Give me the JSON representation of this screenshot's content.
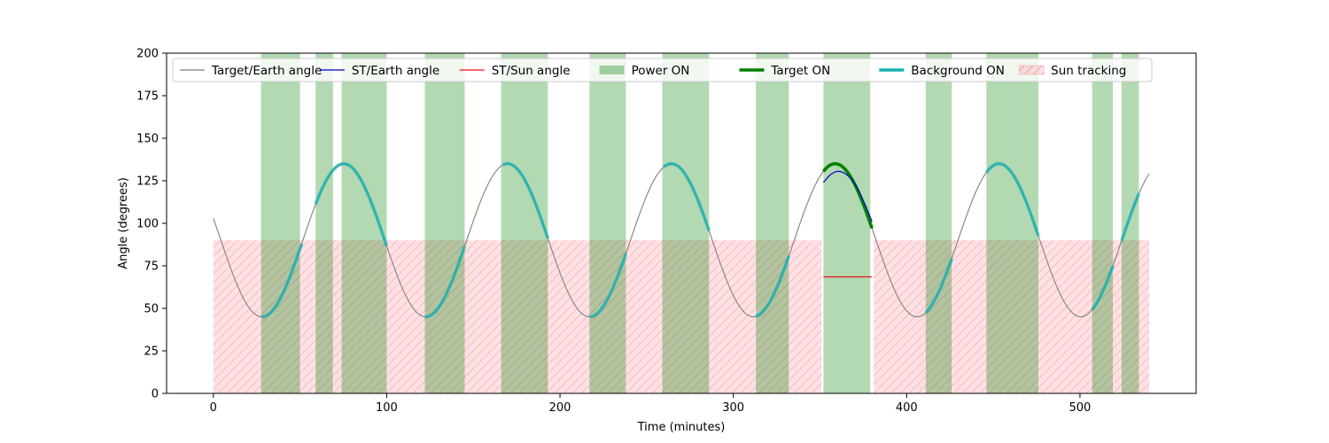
{
  "chart_data": {
    "type": "line",
    "title": "",
    "xlabel": "Time (minutes)",
    "ylabel": "Angle (degrees)",
    "xlim": [
      -27,
      567
    ],
    "ylim": [
      0,
      200
    ],
    "xticks": [
      0,
      100,
      200,
      300,
      400,
      500
    ],
    "yticks": [
      0,
      25,
      50,
      75,
      100,
      125,
      150,
      175,
      200
    ],
    "grid": false,
    "legend_position": "top",
    "legend": [
      {
        "label": "Target/Earth angle",
        "kind": "line",
        "color": "#808080"
      },
      {
        "label": "ST/Earth angle",
        "kind": "line",
        "color": "#0000cc"
      },
      {
        "label": "ST/Sun angle",
        "kind": "line",
        "color": "#ee1111"
      },
      {
        "label": "Power ON",
        "kind": "patch",
        "color": "#5aab5a"
      },
      {
        "label": "Target ON",
        "kind": "thickline",
        "color": "#008000"
      },
      {
        "label": "Background ON",
        "kind": "thickline",
        "color": "#17b3b3"
      },
      {
        "label": "Sun tracking",
        "kind": "hatch",
        "color": "#ff9aa6"
      }
    ],
    "target_earth_angle": {
      "x_range": [
        0,
        540
      ],
      "baseline": 90,
      "amplitude": 45,
      "period": 94.5,
      "trough_x": 28,
      "color": "#808080"
    },
    "power_on_intervals": [
      [
        27.5,
        50
      ],
      [
        59,
        69
      ],
      [
        74,
        100
      ],
      [
        122,
        145
      ],
      [
        166,
        193
      ],
      [
        217,
        238
      ],
      [
        259,
        286
      ],
      [
        313,
        332
      ],
      [
        352,
        379
      ],
      [
        411,
        426
      ],
      [
        446,
        476
      ],
      [
        507,
        519
      ],
      [
        524,
        534
      ]
    ],
    "background_on_intervals": [
      [
        28,
        51
      ],
      [
        59,
        100
      ],
      [
        122,
        145
      ],
      [
        167,
        193
      ],
      [
        217,
        238
      ],
      [
        260,
        286
      ],
      [
        313,
        332
      ],
      [
        411,
        426
      ],
      [
        446,
        476
      ],
      [
        507,
        519
      ],
      [
        524,
        534
      ]
    ],
    "target_on_intervals": [
      [
        352,
        380
      ]
    ],
    "st_earth_angle": {
      "x": [
        352,
        356,
        360,
        364,
        368,
        372,
        376,
        380
      ],
      "y": [
        124,
        128.5,
        130.5,
        129.5,
        126,
        120,
        111,
        101
      ],
      "color": "#0000cc"
    },
    "st_sun_angle": {
      "x": [
        352,
        380
      ],
      "y": [
        68.5,
        68.5
      ],
      "color": "#ee1111"
    },
    "sun_tracking": {
      "intervals": [
        [
          0,
          351
        ],
        [
          381,
          540
        ]
      ],
      "angle": 90,
      "color": "#ff9aa6"
    }
  }
}
